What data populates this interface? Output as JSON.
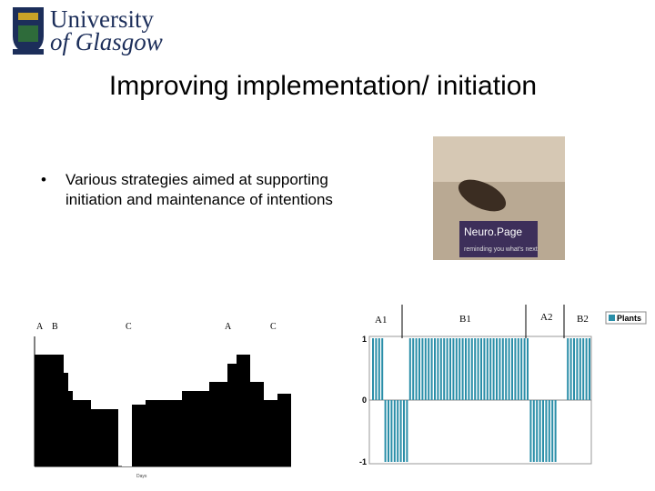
{
  "logo": {
    "line1": "University",
    "line2": "of Glasgow"
  },
  "title": "Improving implementation/ initiation",
  "bullet": {
    "line1": "Various strategies aimed at supporting",
    "line2": "initiation and maintenance of intentions"
  },
  "photo": {
    "brand": "Neuro.Page",
    "tagline": "reminding you what's next"
  },
  "left_chart": {
    "phase_labels": [
      "A",
      "B",
      "C",
      "A",
      "C"
    ]
  },
  "right_chart": {
    "phase_labels": [
      "A1",
      "B1",
      "A2",
      "B2"
    ],
    "y_labels": [
      "1",
      "0",
      "-1"
    ],
    "legend": "Plants"
  }
}
